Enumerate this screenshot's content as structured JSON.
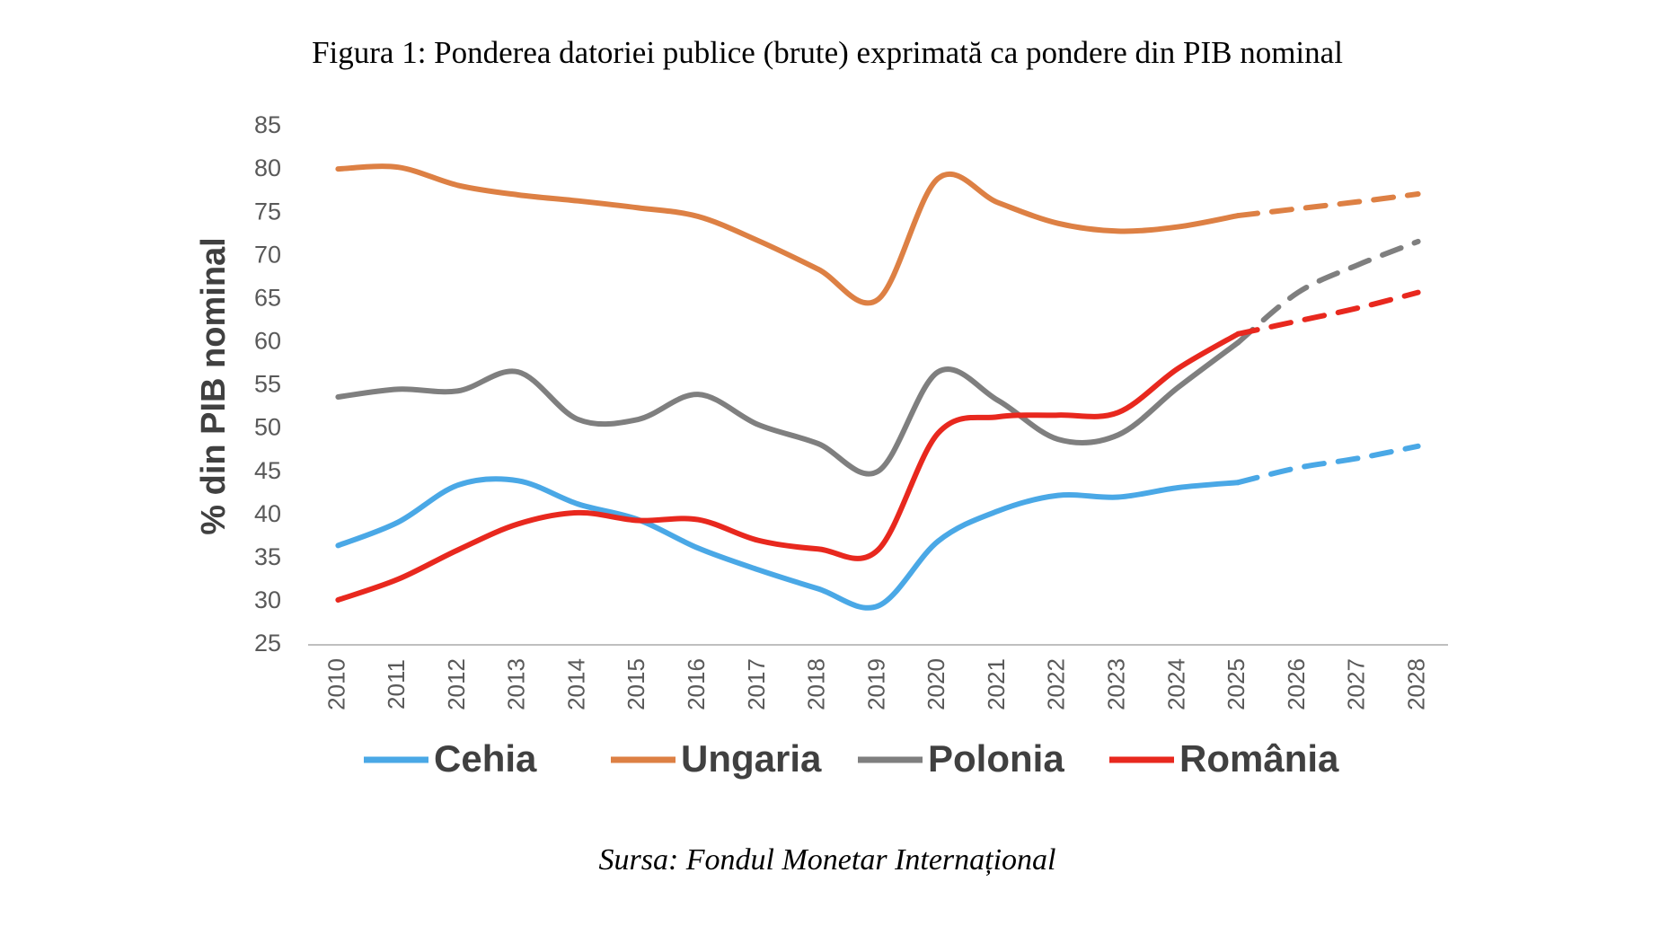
{
  "chart_data": {
    "type": "line",
    "title": "Figura 1: Ponderea datoriei publice (brute) exprimată ca pondere din PIB nominal",
    "y_label": "% din PIB nominal",
    "source": "Sursa: Fondul Monetar Internațional",
    "categories": [
      "2010",
      "2011",
      "2012",
      "2013",
      "2014",
      "2015",
      "2016",
      "2017",
      "2018",
      "2019",
      "2020",
      "2021",
      "2022",
      "2023",
      "2024",
      "2025",
      "2026",
      "2027",
      "2028"
    ],
    "dashed_from": "2025",
    "series": [
      {
        "name": "Cehia",
        "color": "#4aa8e6",
        "values": [
          36.5,
          39.2,
          43.5,
          44,
          41.3,
          39.5,
          36.2,
          33.7,
          31.5,
          29.5,
          37,
          40.5,
          42.3,
          42.1,
          43.2,
          43.8,
          45.5,
          46.6,
          48
        ]
      },
      {
        "name": "Ungaria",
        "color": "#dd8044",
        "values": [
          80.1,
          80.3,
          78.2,
          77.1,
          76.4,
          75.6,
          74.6,
          71.8,
          68.5,
          65,
          79,
          76.2,
          73.8,
          72.9,
          73.4,
          74.7,
          75.5,
          76.3,
          77.2
        ]
      },
      {
        "name": "Polonia",
        "color": "#7f7f7f",
        "values": [
          53.7,
          54.6,
          54.4,
          56.6,
          51.1,
          51.1,
          54,
          50.5,
          48.3,
          45.1,
          56.6,
          53.3,
          48.8,
          49.3,
          54.8,
          60,
          65.8,
          69,
          71.7
        ]
      },
      {
        "name": "România",
        "color": "#e8281e",
        "values": [
          30.2,
          32.6,
          36,
          39,
          40.3,
          39.4,
          39.5,
          37.1,
          36.1,
          36,
          49.5,
          51.4,
          51.6,
          51.9,
          57,
          61,
          62.5,
          64,
          65.8
        ]
      }
    ],
    "ylim": [
      25,
      85
    ],
    "yticks": [
      25,
      30,
      35,
      40,
      45,
      50,
      55,
      60,
      65,
      70,
      75,
      80,
      85
    ],
    "grid": false
  }
}
